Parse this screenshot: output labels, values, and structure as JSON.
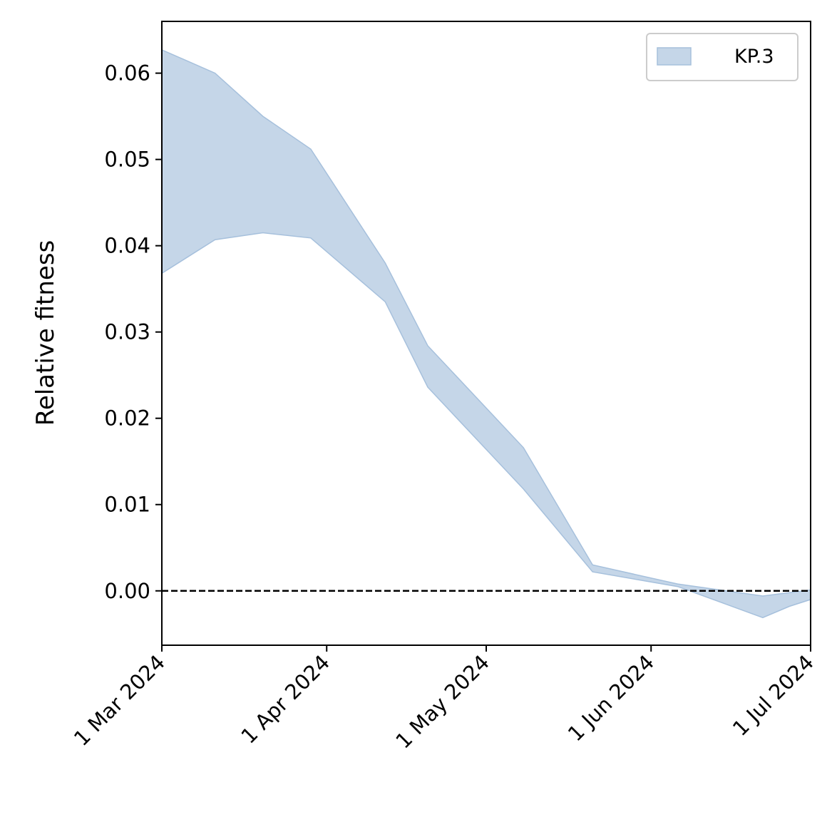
{
  "chart_data": {
    "type": "area",
    "title": "",
    "xlabel": "",
    "ylabel": "Relative fitness",
    "xlim": [
      "2024-03-01",
      "2024-07-01"
    ],
    "ylim": [
      -0.0063,
      0.066
    ],
    "x_ticks": [
      {
        "date": "2024-03-01",
        "label": "1 Mar 2024"
      },
      {
        "date": "2024-04-01",
        "label": "1 Apr 2024"
      },
      {
        "date": "2024-05-01",
        "label": "1 May 2024"
      },
      {
        "date": "2024-06-01",
        "label": "1 Jun 2024"
      },
      {
        "date": "2024-07-01",
        "label": "1 Jul 2024"
      }
    ],
    "y_ticks": [
      {
        "value": 0.0,
        "label": "0.00"
      },
      {
        "value": 0.01,
        "label": "0.01"
      },
      {
        "value": 0.02,
        "label": "0.02"
      },
      {
        "value": 0.03,
        "label": "0.03"
      },
      {
        "value": 0.04,
        "label": "0.04"
      },
      {
        "value": 0.05,
        "label": "0.05"
      },
      {
        "value": 0.06,
        "label": "0.06"
      }
    ],
    "reference_line": {
      "y": 0.0,
      "style": "dashed",
      "color": "#000000"
    },
    "series": [
      {
        "name": "KP.3",
        "color": "#a6c0dc",
        "opacity": 0.65,
        "x": [
          "2024-03-01",
          "2024-03-11",
          "2024-03-20",
          "2024-03-29",
          "2024-04-12",
          "2024-04-20",
          "2024-05-08",
          "2024-05-21",
          "2024-06-06",
          "2024-06-22",
          "2024-06-27",
          "2024-07-01"
        ],
        "lower": [
          0.0368,
          0.0407,
          0.0415,
          0.0409,
          0.0335,
          0.0236,
          0.0118,
          0.0022,
          0.0005,
          -0.0031,
          -0.0018,
          -0.001
        ],
        "upper": [
          0.0627,
          0.06,
          0.055,
          0.0512,
          0.038,
          0.0284,
          0.0166,
          0.003,
          0.0008,
          -0.0006,
          -0.0002,
          0.0001
        ]
      }
    ],
    "legend": {
      "position": "top-right",
      "entries": [
        "KP.3"
      ]
    },
    "grid": false
  }
}
